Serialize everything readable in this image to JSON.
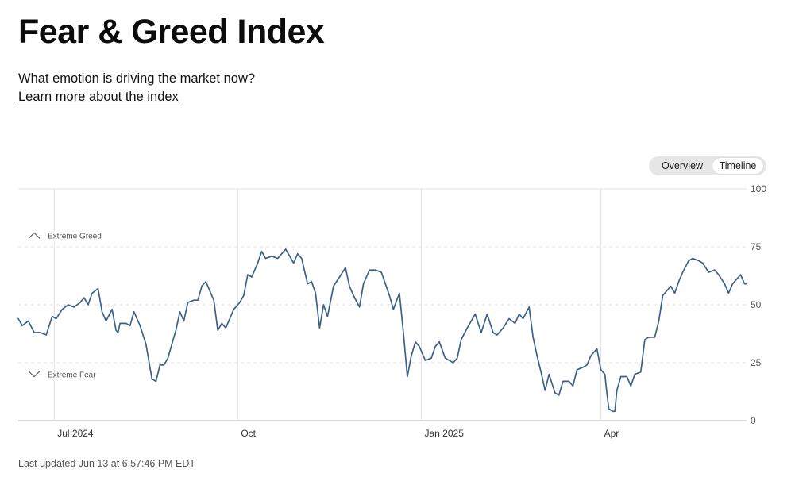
{
  "header": {
    "title": "Fear & Greed Index",
    "subtitle": "What emotion is driving the market now?",
    "learn_more": "Learn more about the index"
  },
  "toggle": {
    "overview_label": "Overview",
    "timeline_label": "Timeline",
    "selected": "Timeline"
  },
  "footer": {
    "last_updated": "Last updated Jun 13 at 6:57:46 PM EDT"
  },
  "colors": {
    "line": "#3d6189",
    "grid": "#e2e2e2",
    "axis": "#cfcfcf"
  },
  "icons": {
    "greed": "chevron-up-icon",
    "fear": "chevron-down-icon"
  },
  "chart_data": {
    "type": "line",
    "ylim": [
      0,
      100
    ],
    "yticks": [
      0,
      25,
      50,
      75,
      100
    ],
    "xlim": [
      "2024-06-13",
      "2025-06-13"
    ],
    "xticks": [
      {
        "date": "2024-07-01",
        "label": "Jul 2024"
      },
      {
        "date": "2024-10-01",
        "label": "Oct"
      },
      {
        "date": "2025-01-01",
        "label": "Jan 2025"
      },
      {
        "date": "2025-04-01",
        "label": "Apr"
      }
    ],
    "annotations": [
      {
        "label": "Extreme Greed",
        "icon": "chevron-up-icon",
        "y": 80
      },
      {
        "label": "Extreme Fear",
        "icon": "chevron-down-icon",
        "y": 20
      }
    ],
    "series": [
      {
        "points": [
          [
            "2024-06-13",
            44
          ],
          [
            "2024-06-15",
            41
          ],
          [
            "2024-06-18",
            43
          ],
          [
            "2024-06-21",
            38
          ],
          [
            "2024-06-24",
            38
          ],
          [
            "2024-06-27",
            37
          ],
          [
            "2024-06-30",
            45
          ],
          [
            "2024-07-02",
            44
          ],
          [
            "2024-07-05",
            48
          ],
          [
            "2024-07-08",
            50
          ],
          [
            "2024-07-11",
            49
          ],
          [
            "2024-07-14",
            51
          ],
          [
            "2024-07-16",
            53
          ],
          [
            "2024-07-18",
            50
          ],
          [
            "2024-07-20",
            55
          ],
          [
            "2024-07-23",
            57
          ],
          [
            "2024-07-25",
            47
          ],
          [
            "2024-07-27",
            43
          ],
          [
            "2024-07-30",
            48
          ],
          [
            "2024-08-01",
            39
          ],
          [
            "2024-08-02",
            38
          ],
          [
            "2024-08-03",
            42
          ],
          [
            "2024-08-06",
            42
          ],
          [
            "2024-08-08",
            41
          ],
          [
            "2024-08-10",
            47
          ],
          [
            "2024-08-13",
            41
          ],
          [
            "2024-08-16",
            33
          ],
          [
            "2024-08-19",
            18
          ],
          [
            "2024-08-21",
            17
          ],
          [
            "2024-08-23",
            24
          ],
          [
            "2024-08-25",
            24
          ],
          [
            "2024-08-27",
            27
          ],
          [
            "2024-08-29",
            33
          ],
          [
            "2024-08-31",
            39
          ],
          [
            "2024-09-02",
            47
          ],
          [
            "2024-09-04",
            43
          ],
          [
            "2024-09-06",
            51
          ],
          [
            "2024-09-09",
            52
          ],
          [
            "2024-09-11",
            52
          ],
          [
            "2024-09-13",
            58
          ],
          [
            "2024-09-15",
            60
          ],
          [
            "2024-09-17",
            56
          ],
          [
            "2024-09-19",
            52
          ],
          [
            "2024-09-21",
            39
          ],
          [
            "2024-09-23",
            42
          ],
          [
            "2024-09-25",
            40
          ],
          [
            "2024-09-27",
            44
          ],
          [
            "2024-09-29",
            48
          ],
          [
            "2024-10-02",
            51
          ],
          [
            "2024-10-04",
            54
          ],
          [
            "2024-10-06",
            63
          ],
          [
            "2024-10-08",
            62
          ],
          [
            "2024-10-11",
            68
          ],
          [
            "2024-10-13",
            73
          ],
          [
            "2024-10-15",
            70
          ],
          [
            "2024-10-18",
            71
          ],
          [
            "2024-10-21",
            70
          ],
          [
            "2024-10-25",
            74
          ],
          [
            "2024-10-27",
            71
          ],
          [
            "2024-10-29",
            68
          ],
          [
            "2024-10-31",
            72
          ],
          [
            "2024-11-02",
            70
          ],
          [
            "2024-11-05",
            59
          ],
          [
            "2024-11-07",
            60
          ],
          [
            "2024-11-09",
            55
          ],
          [
            "2024-11-11",
            40
          ],
          [
            "2024-11-13",
            50
          ],
          [
            "2024-11-15",
            45
          ],
          [
            "2024-11-18",
            58
          ],
          [
            "2024-11-21",
            62
          ],
          [
            "2024-11-24",
            66
          ],
          [
            "2024-11-26",
            58
          ],
          [
            "2024-11-28",
            54
          ],
          [
            "2024-12-01",
            49
          ],
          [
            "2024-12-03",
            59
          ],
          [
            "2024-12-06",
            65
          ],
          [
            "2024-12-09",
            65
          ],
          [
            "2024-12-12",
            64
          ],
          [
            "2024-12-14",
            59
          ],
          [
            "2024-12-16",
            54
          ],
          [
            "2024-12-18",
            48
          ],
          [
            "2024-12-21",
            55
          ],
          [
            "2024-12-23",
            38
          ],
          [
            "2024-12-25",
            19
          ],
          [
            "2024-12-27",
            28
          ],
          [
            "2024-12-29",
            34
          ],
          [
            "2024-12-31",
            32
          ],
          [
            "2025-01-03",
            26
          ],
          [
            "2025-01-06",
            27
          ],
          [
            "2025-01-08",
            32
          ],
          [
            "2025-01-10",
            34
          ],
          [
            "2025-01-13",
            27
          ],
          [
            "2025-01-17",
            25
          ],
          [
            "2025-01-19",
            27
          ],
          [
            "2025-01-21",
            35
          ],
          [
            "2025-01-24",
            40
          ],
          [
            "2025-01-26",
            43
          ],
          [
            "2025-01-28",
            46
          ],
          [
            "2025-01-31",
            38
          ],
          [
            "2025-02-03",
            46
          ],
          [
            "2025-02-06",
            38
          ],
          [
            "2025-02-08",
            37
          ],
          [
            "2025-02-11",
            40
          ],
          [
            "2025-02-14",
            44
          ],
          [
            "2025-02-17",
            42
          ],
          [
            "2025-02-19",
            46
          ],
          [
            "2025-02-21",
            44
          ],
          [
            "2025-02-24",
            49
          ],
          [
            "2025-02-26",
            36
          ],
          [
            "2025-02-28",
            28
          ],
          [
            "2025-03-02",
            21
          ],
          [
            "2025-03-04",
            13
          ],
          [
            "2025-03-06",
            20
          ],
          [
            "2025-03-09",
            12
          ],
          [
            "2025-03-11",
            11
          ],
          [
            "2025-03-13",
            17
          ],
          [
            "2025-03-16",
            17
          ],
          [
            "2025-03-18",
            15
          ],
          [
            "2025-03-20",
            22
          ],
          [
            "2025-03-23",
            23
          ],
          [
            "2025-03-25",
            24
          ],
          [
            "2025-03-27",
            28
          ],
          [
            "2025-03-30",
            31
          ],
          [
            "2025-04-01",
            22
          ],
          [
            "2025-04-03",
            20
          ],
          [
            "2025-04-04",
            12
          ],
          [
            "2025-04-05",
            5
          ],
          [
            "2025-04-07",
            4
          ],
          [
            "2025-04-08",
            4
          ],
          [
            "2025-04-09",
            13
          ],
          [
            "2025-04-11",
            19
          ],
          [
            "2025-04-14",
            19
          ],
          [
            "2025-04-16",
            15
          ],
          [
            "2025-04-18",
            20
          ],
          [
            "2025-04-21",
            21
          ],
          [
            "2025-04-23",
            35
          ],
          [
            "2025-04-25",
            36
          ],
          [
            "2025-04-28",
            36
          ],
          [
            "2025-04-30",
            43
          ],
          [
            "2025-05-02",
            54
          ],
          [
            "2025-05-04",
            56
          ],
          [
            "2025-05-06",
            58
          ],
          [
            "2025-05-08",
            55
          ],
          [
            "2025-05-10",
            60
          ],
          [
            "2025-05-12",
            64
          ],
          [
            "2025-05-15",
            69
          ],
          [
            "2025-05-17",
            70
          ],
          [
            "2025-05-20",
            69
          ],
          [
            "2025-05-22",
            68
          ],
          [
            "2025-05-25",
            64
          ],
          [
            "2025-05-28",
            65
          ],
          [
            "2025-05-30",
            63
          ],
          [
            "2025-06-02",
            59
          ],
          [
            "2025-06-04",
            55
          ],
          [
            "2025-06-06",
            59
          ],
          [
            "2025-06-08",
            61
          ],
          [
            "2025-06-10",
            63
          ],
          [
            "2025-06-12",
            59
          ],
          [
            "2025-06-13",
            59
          ]
        ]
      }
    ]
  }
}
